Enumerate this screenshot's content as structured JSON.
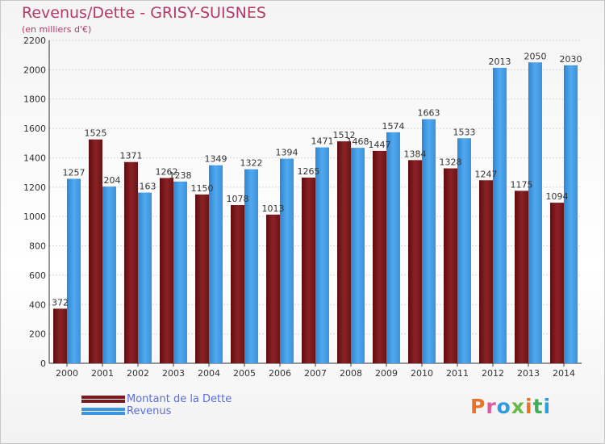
{
  "title": "Revenus/Dette - GRISY-SUISNES",
  "subtitle": "(en milliers d'€)",
  "brand": "Proxiti",
  "colors": {
    "title": "#b23a68",
    "debt": "#7a1a1c",
    "revenue": "#3d96e0",
    "legend_text": "#5a6fd8",
    "brand_letters": [
      "#e8742a",
      "#e05a9a",
      "#2f9be0",
      "#6ab84a",
      "#e8742a",
      "#3fae5b",
      "#2f9be0"
    ]
  },
  "legend": [
    {
      "label": "Montant de la Dette",
      "color": "#7a1a1c"
    },
    {
      "label": "Revenus",
      "color": "#3d96e0"
    }
  ],
  "chart_data": {
    "type": "bar",
    "categories": [
      "2000",
      "2001",
      "2002",
      "2003",
      "2004",
      "2005",
      "2006",
      "2007",
      "2008",
      "2009",
      "2010",
      "2011",
      "2012",
      "2013",
      "2014"
    ],
    "series": [
      {
        "name": "Montant de la Dette",
        "values": [
          372,
          1525,
          1371,
          1262,
          1150,
          1078,
          1013,
          1265,
          1512,
          1447,
          1384,
          1328,
          1247,
          1175,
          1094
        ]
      },
      {
        "name": "Revenus",
        "values": [
          1257,
          1204,
          1163,
          1238,
          1349,
          1322,
          1394,
          1471,
          1468,
          1574,
          1663,
          1533,
          2013,
          2050,
          2030
        ]
      }
    ],
    "data_labels": [
      [
        "372",
        "1525",
        "1371",
        "1262",
        "1150",
        "1078",
        "1013",
        "1265",
        "1512",
        "1447",
        "1384",
        "1328",
        "1247",
        "1175",
        "1094"
      ],
      [
        "1257",
        "1204",
        "1163",
        "1238",
        "1349",
        "1322",
        "1394",
        "1471",
        "1468",
        "1574",
        "1663",
        "1533",
        "2013",
        "2050",
        "2030"
      ]
    ],
    "ylim": [
      0,
      2200
    ],
    "yticks": [
      0,
      200,
      400,
      600,
      800,
      1000,
      1200,
      1400,
      1600,
      1800,
      2000,
      2200
    ],
    "grid": true,
    "legend_position": "bottom-left"
  }
}
